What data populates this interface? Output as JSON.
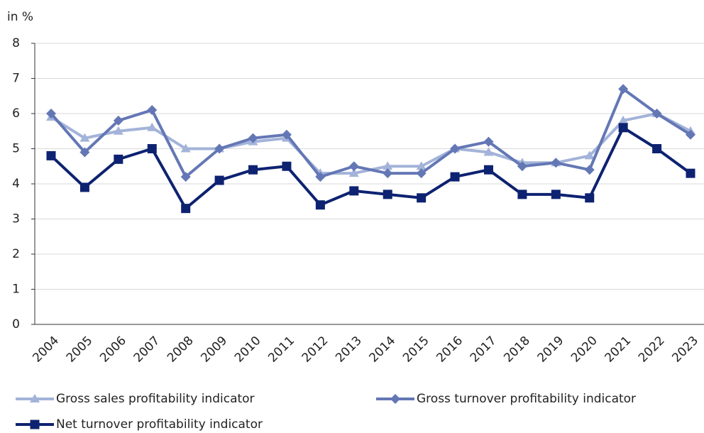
{
  "chart_data": {
    "type": "line",
    "y_label": "in %",
    "categories": [
      "2004",
      "2005",
      "2006",
      "2007",
      "2008",
      "2009",
      "2010",
      "2011",
      "2012",
      "2013",
      "2014",
      "2015",
      "2016",
      "2017",
      "2018",
      "2019",
      "2020",
      "2021",
      "2022",
      "2023"
    ],
    "series": [
      {
        "name": "Gross sales profitability indicator",
        "color": "#a3b3d9",
        "marker": "triangle",
        "values": [
          5.9,
          5.3,
          5.5,
          5.6,
          5.0,
          5.0,
          5.2,
          5.3,
          4.3,
          4.3,
          4.5,
          4.5,
          5.0,
          4.9,
          4.6,
          4.6,
          4.8,
          5.8,
          6.0,
          5.5
        ]
      },
      {
        "name": "Gross turnover profitability indicator",
        "color": "#6477b5",
        "marker": "diamond",
        "values": [
          6.0,
          4.9,
          5.8,
          6.1,
          4.2,
          5.0,
          5.3,
          5.4,
          4.2,
          4.5,
          4.3,
          4.3,
          5.0,
          5.2,
          4.5,
          4.6,
          4.4,
          6.7,
          6.0,
          5.4
        ]
      },
      {
        "name": "Net turnover profitability indicator",
        "color": "#0d2270",
        "marker": "square",
        "values": [
          4.8,
          3.9,
          4.7,
          5.0,
          3.3,
          4.1,
          4.4,
          4.5,
          3.4,
          3.8,
          3.7,
          3.6,
          4.2,
          4.4,
          3.7,
          3.7,
          3.6,
          5.6,
          5.0,
          4.3
        ]
      }
    ],
    "ylim": [
      0,
      8
    ],
    "yticks": [
      0,
      1,
      2,
      3,
      4,
      5,
      6,
      7,
      8
    ],
    "grid": true
  }
}
